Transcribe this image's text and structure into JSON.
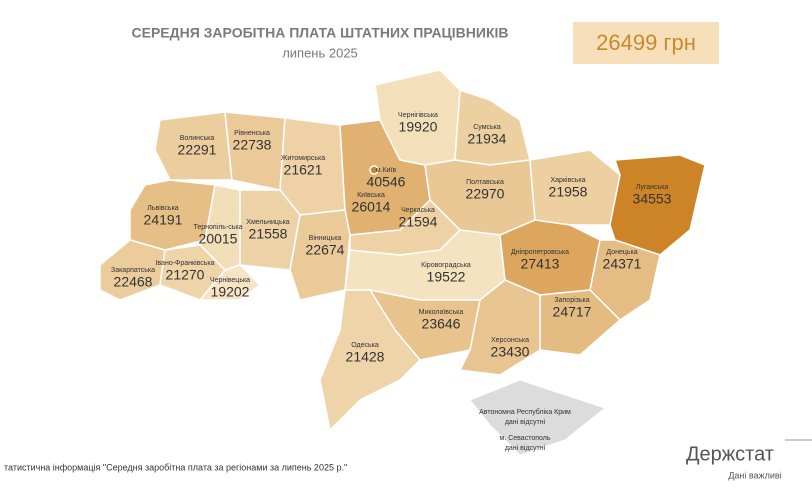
{
  "header": {
    "title": "СЕРЕДНЯ ЗАРОБІТНА ПЛАТА ШТАТНИХ ПРАЦІВНИКІВ",
    "subtitle": "липень 2025",
    "total": "26499 грн"
  },
  "regions": [
    {
      "name": "Волинська",
      "value": 22291
    },
    {
      "name": "Рівненська",
      "value": 22738
    },
    {
      "name": "Житомирська",
      "value": 21621
    },
    {
      "name": "Київська",
      "value": 26014
    },
    {
      "name": "Чернігівська",
      "value": 19920
    },
    {
      "name": "Сумська",
      "value": 21934
    },
    {
      "name": "Полтавська",
      "value": 22970
    },
    {
      "name": "Харківська",
      "value": 21958
    },
    {
      "name": "Луганська",
      "value": 34553
    },
    {
      "name": "Львівська",
      "value": 24191
    },
    {
      "name": "Тернопіль-ська",
      "value": 20015
    },
    {
      "name": "Хмельницька",
      "value": 21558
    },
    {
      "name": "Вінницька",
      "value": 22674
    },
    {
      "name": "Черкаська",
      "value": 21594
    },
    {
      "name": "Кіровоградська",
      "value": 19522
    },
    {
      "name": "Дніпропетровська",
      "value": 27413
    },
    {
      "name": "Донецька",
      "value": 24371
    },
    {
      "name": "Запорізька",
      "value": 24717
    },
    {
      "name": "Закарпатська",
      "value": 22468
    },
    {
      "name": "Івано-Франківська",
      "value": 21270
    },
    {
      "name": "Чернівецька",
      "value": 19202
    },
    {
      "name": "Миколаївська",
      "value": 23646
    },
    {
      "name": "Одеська",
      "value": 21428
    },
    {
      "name": "Херсонська",
      "value": 23430
    },
    {
      "name": "м.Київ",
      "value": 40546
    }
  ],
  "crimea": [
    {
      "name": "Автономна Республіка Крим",
      "note": "дані відсутні"
    },
    {
      "name": "м. Севастополь",
      "note": "дані відсутні"
    }
  ],
  "footer": {
    "source": "татистична інформація \"Середня заробітна плата за регіонами за липень 2025 р.\"",
    "logo": "Держстат",
    "slogan": "Дані важливі"
  }
}
